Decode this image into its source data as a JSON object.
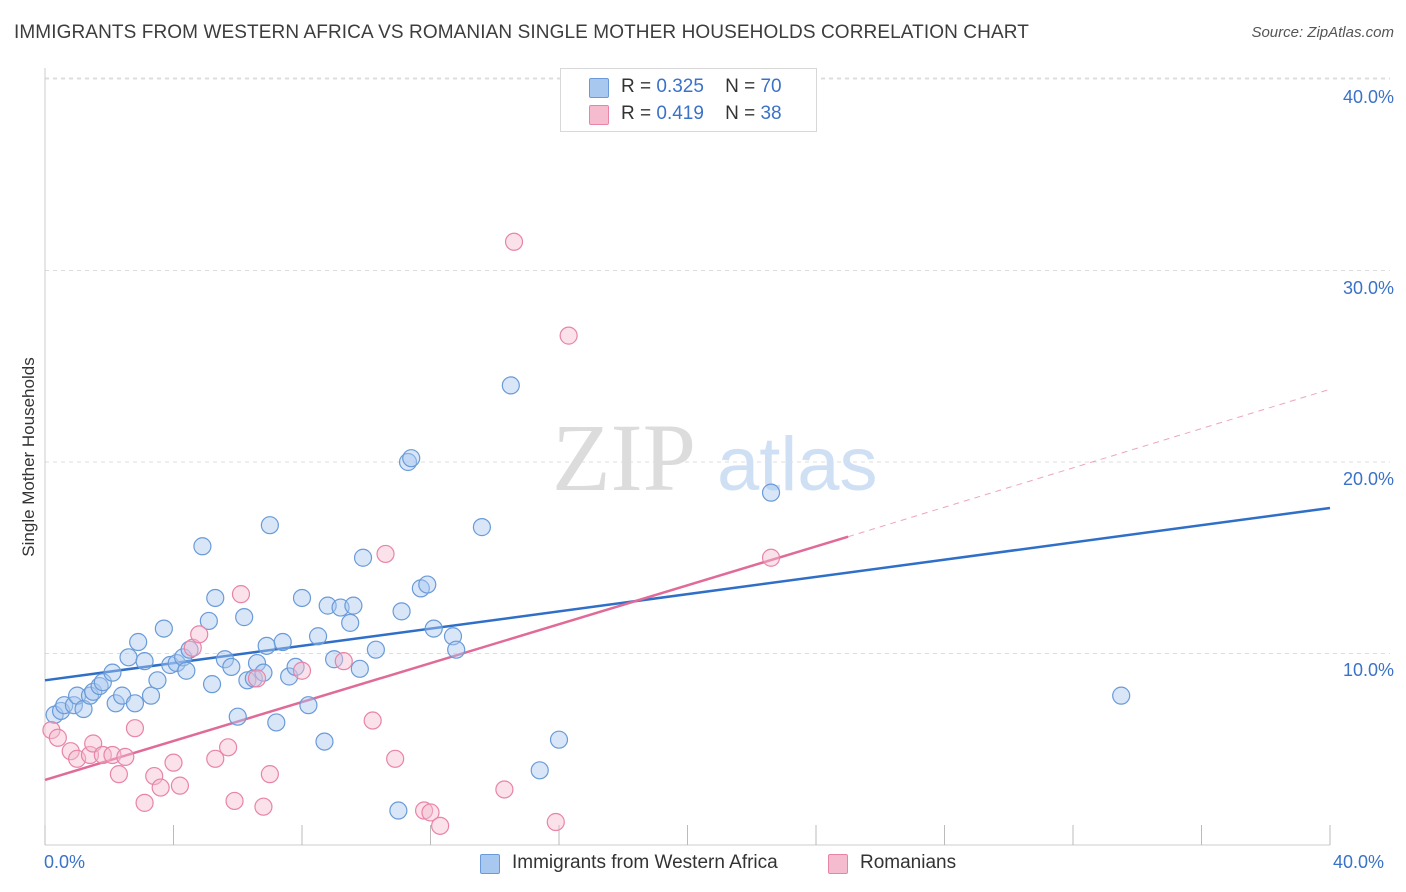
{
  "title": "IMMIGRANTS FROM WESTERN AFRICA VS ROMANIAN SINGLE MOTHER HOUSEHOLDS CORRELATION CHART",
  "source": "Source: ZipAtlas.com",
  "watermark": {
    "zip": "ZIP",
    "atlas": "atlas"
  },
  "legend": {
    "r_label": "R =",
    "n_label": "N =",
    "rows": [
      {
        "r": "0.325",
        "n": "70",
        "color": "#a9c8f0",
        "stroke": "#6a9bd8"
      },
      {
        "r": "0.419",
        "n": "38",
        "color": "#f5bcd0",
        "stroke": "#e884a8"
      }
    ]
  },
  "bottom_legend": [
    {
      "label": "Immigrants from Western Africa",
      "color": "#a9c8f0",
      "stroke": "#6a9bd8"
    },
    {
      "label": "Romanians",
      "color": "#f5bcd0",
      "stroke": "#e884a8"
    }
  ],
  "chart_data": {
    "type": "scatter",
    "title": "IMMIGRANTS FROM WESTERN AFRICA VS ROMANIAN SINGLE MOTHER HOUSEHOLDS CORRELATION CHART",
    "xlabel": "",
    "ylabel": "Single Mother Households",
    "xlim": [
      0,
      40
    ],
    "ylim": [
      0,
      40
    ],
    "x_tick_labels": [
      "0.0%",
      "40.0%"
    ],
    "y_ticks": [
      10,
      20,
      30,
      40
    ],
    "y_tick_labels": [
      "10.0%",
      "20.0%",
      "30.0%",
      "40.0%"
    ],
    "grid": true,
    "legend_position": "top-center",
    "series": [
      {
        "name": "Immigrants from Western Africa",
        "color": "#6a9bd8",
        "trend": {
          "x": [
            0,
            40
          ],
          "y": [
            8.6,
            17.6
          ],
          "color": "#2f6fc8"
        },
        "points": [
          [
            0.3,
            6.8
          ],
          [
            0.5,
            7.0
          ],
          [
            0.6,
            7.3
          ],
          [
            0.9,
            7.3
          ],
          [
            1.0,
            7.8
          ],
          [
            1.2,
            7.1
          ],
          [
            1.4,
            7.8
          ],
          [
            1.5,
            8.0
          ],
          [
            1.7,
            8.3
          ],
          [
            1.8,
            8.5
          ],
          [
            2.1,
            9.0
          ],
          [
            2.2,
            7.4
          ],
          [
            2.4,
            7.8
          ],
          [
            2.6,
            9.8
          ],
          [
            2.8,
            7.4
          ],
          [
            2.9,
            10.6
          ],
          [
            3.1,
            9.6
          ],
          [
            3.3,
            7.8
          ],
          [
            3.5,
            8.6
          ],
          [
            3.7,
            11.3
          ],
          [
            3.9,
            9.4
          ],
          [
            4.1,
            9.5
          ],
          [
            4.3,
            9.8
          ],
          [
            4.4,
            9.1
          ],
          [
            4.5,
            10.2
          ],
          [
            4.9,
            15.6
          ],
          [
            5.1,
            11.7
          ],
          [
            5.2,
            8.4
          ],
          [
            5.3,
            12.9
          ],
          [
            5.6,
            9.7
          ],
          [
            5.8,
            9.3
          ],
          [
            6.0,
            6.7
          ],
          [
            6.2,
            11.9
          ],
          [
            6.3,
            8.6
          ],
          [
            6.5,
            8.7
          ],
          [
            6.6,
            9.5
          ],
          [
            6.8,
            9.0
          ],
          [
            6.9,
            10.4
          ],
          [
            7.0,
            16.7
          ],
          [
            7.2,
            6.4
          ],
          [
            7.4,
            10.6
          ],
          [
            7.6,
            8.8
          ],
          [
            7.8,
            9.3
          ],
          [
            8.0,
            12.9
          ],
          [
            8.2,
            7.3
          ],
          [
            8.5,
            10.9
          ],
          [
            8.7,
            5.4
          ],
          [
            8.8,
            12.5
          ],
          [
            9.0,
            9.7
          ],
          [
            9.2,
            12.4
          ],
          [
            9.5,
            11.6
          ],
          [
            9.6,
            12.5
          ],
          [
            9.8,
            9.2
          ],
          [
            9.9,
            15.0
          ],
          [
            10.3,
            10.2
          ],
          [
            11.0,
            1.8
          ],
          [
            11.1,
            12.2
          ],
          [
            11.3,
            20.0
          ],
          [
            11.4,
            20.2
          ],
          [
            11.7,
            13.4
          ],
          [
            11.9,
            13.6
          ],
          [
            12.1,
            11.3
          ],
          [
            12.7,
            10.9
          ],
          [
            12.8,
            10.2
          ],
          [
            13.6,
            16.6
          ],
          [
            14.5,
            24.0
          ],
          [
            15.4,
            3.9
          ],
          [
            16.0,
            5.5
          ],
          [
            22.6,
            18.4
          ],
          [
            33.5,
            7.8
          ]
        ]
      },
      {
        "name": "Romanians",
        "color": "#e884a8",
        "trend": {
          "x": [
            0,
            25.0
          ],
          "y": [
            3.4,
            16.1
          ],
          "color": "#e06a98",
          "dashed_extension": {
            "x": [
              25.0,
              40
            ],
            "y": [
              16.1,
              23.8
            ]
          }
        },
        "points": [
          [
            0.2,
            6.0
          ],
          [
            0.4,
            5.6
          ],
          [
            0.8,
            4.9
          ],
          [
            1.0,
            4.5
          ],
          [
            1.4,
            4.7
          ],
          [
            1.5,
            5.3
          ],
          [
            1.8,
            4.7
          ],
          [
            2.1,
            4.7
          ],
          [
            2.3,
            3.7
          ],
          [
            2.5,
            4.6
          ],
          [
            2.8,
            6.1
          ],
          [
            3.1,
            2.2
          ],
          [
            3.4,
            3.6
          ],
          [
            3.6,
            3.0
          ],
          [
            4.0,
            4.3
          ],
          [
            4.2,
            3.1
          ],
          [
            4.6,
            10.3
          ],
          [
            4.8,
            11.0
          ],
          [
            5.3,
            4.5
          ],
          [
            5.7,
            5.1
          ],
          [
            5.9,
            2.3
          ],
          [
            6.1,
            13.1
          ],
          [
            6.6,
            8.7
          ],
          [
            6.8,
            2.0
          ],
          [
            7.0,
            3.7
          ],
          [
            8.0,
            9.1
          ],
          [
            9.3,
            9.6
          ],
          [
            10.2,
            6.5
          ],
          [
            10.6,
            15.2
          ],
          [
            10.9,
            4.5
          ],
          [
            11.8,
            1.8
          ],
          [
            12.0,
            1.7
          ],
          [
            12.3,
            1.0
          ],
          [
            14.3,
            2.9
          ],
          [
            14.6,
            31.5
          ],
          [
            15.9,
            1.2
          ],
          [
            16.3,
            26.6
          ],
          [
            22.6,
            15.0
          ]
        ]
      }
    ]
  }
}
